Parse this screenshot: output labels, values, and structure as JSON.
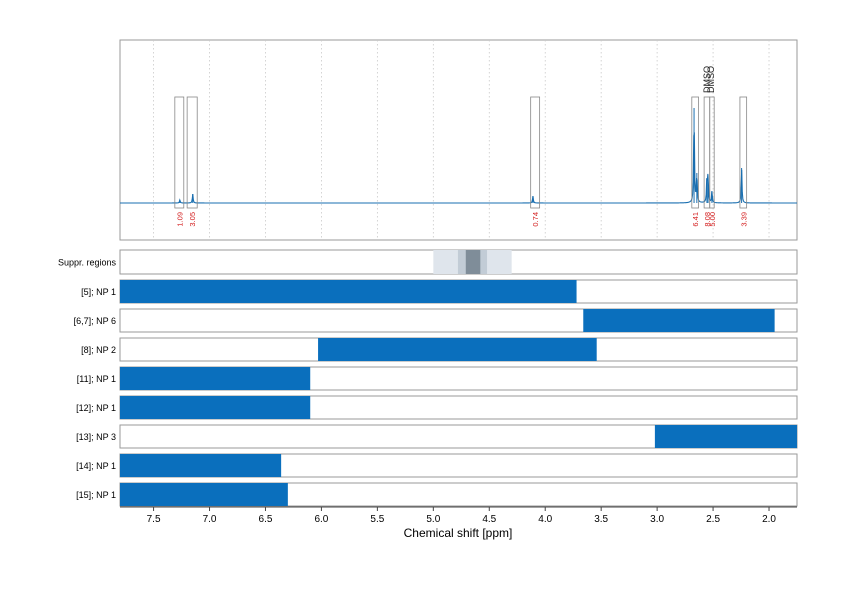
{
  "chart_data": {
    "type": "nmr-spectrum-with-region-bars",
    "xlabel": "Chemical shift [ppm]",
    "xlim": [
      7.8,
      1.75
    ],
    "x_ticks": [
      "7.5",
      "7.0",
      "6.5",
      "6.0",
      "5.5",
      "5.0",
      "4.5",
      "4.0",
      "3.5",
      "3.0",
      "2.5",
      "2.0"
    ],
    "x_tick_values": [
      7.5,
      7.0,
      6.5,
      6.0,
      5.5,
      5.0,
      4.5,
      4.0,
      3.5,
      3.0,
      2.5,
      2.0
    ],
    "grid": "vertical-dotted",
    "colors": {
      "spectrum": "#1a6fb0",
      "bar": "#0a6fbd",
      "integral_label": "#d42020",
      "box": "#888888"
    },
    "spectrum": {
      "baseline": 0,
      "peaks": [
        {
          "x": 7.265,
          "height": 0.03
        },
        {
          "x": 7.15,
          "height": 0.09
        },
        {
          "x": 4.11,
          "height": 0.07
        },
        {
          "x": 2.67,
          "height": 0.95
        },
        {
          "x": 2.645,
          "height": 0.3
        },
        {
          "x": 2.555,
          "height": 0.25
        },
        {
          "x": 2.545,
          "height": 0.28
        },
        {
          "x": 2.51,
          "height": 0.12
        },
        {
          "x": 2.245,
          "height": 0.35
        }
      ]
    },
    "integration_regions": [
      {
        "from": 7.31,
        "to": 7.23,
        "label": "1.09"
      },
      {
        "from": 7.2,
        "to": 7.11,
        "label": "3.05"
      },
      {
        "from": 4.13,
        "to": 4.05,
        "label": "0.74"
      },
      {
        "from": 2.69,
        "to": 2.63,
        "label": "6.41"
      },
      {
        "from": 2.58,
        "to": 2.53,
        "label": "8.08"
      },
      {
        "from": 2.53,
        "to": 2.49,
        "label": "5.00"
      },
      {
        "from": 2.26,
        "to": 2.2,
        "label": "3.39"
      }
    ],
    "solvent_labels": [
      {
        "x": 2.555,
        "label": "DMSO"
      },
      {
        "x": 2.52,
        "label": "DMSO"
      }
    ],
    "suppressed_regions": {
      "label": "Suppr. regions",
      "bands": [
        {
          "from": 5.0,
          "to": 4.3,
          "shade": "#dfe5ec"
        },
        {
          "from": 4.78,
          "to": 4.52,
          "shade": "#c2ccd6"
        },
        {
          "from": 4.71,
          "to": 4.58,
          "shade": "#7f8d99"
        }
      ]
    },
    "bars": [
      {
        "label": "[5]; NP 1",
        "from": 7.8,
        "to": 3.72
      },
      {
        "label": "[6,7]; NP 6",
        "from": 3.66,
        "to": 1.95
      },
      {
        "label": "[8]; NP 2",
        "from": 6.03,
        "to": 3.54
      },
      {
        "label": "[11]; NP 1",
        "from": 7.8,
        "to": 6.1
      },
      {
        "label": "[12]; NP 1",
        "from": 7.8,
        "to": 6.1
      },
      {
        "label": "[13]; NP 3",
        "from": 3.02,
        "to": 1.75
      },
      {
        "label": "[14]; NP 1",
        "from": 7.8,
        "to": 6.36
      },
      {
        "label": "[15]; NP 1",
        "from": 7.8,
        "to": 6.3
      }
    ]
  }
}
